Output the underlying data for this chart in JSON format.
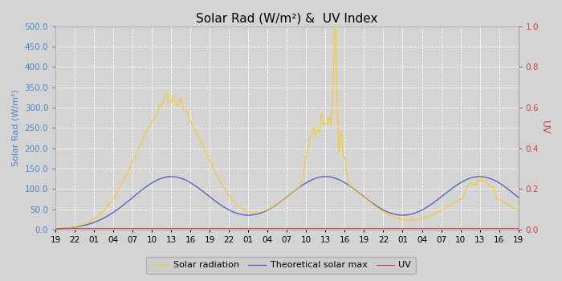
{
  "title": "Solar Rad (W/m²) &  UV Index",
  "ylabel_left": "Solar Rad (W/m²)",
  "ylabel_right": "UV",
  "ylim_left": [
    0,
    500
  ],
  "ylim_right": [
    0,
    1.0
  ],
  "yticks_left": [
    0.0,
    50.0,
    100.0,
    150.0,
    200.0,
    250.0,
    300.0,
    350.0,
    400.0,
    450.0,
    500.0
  ],
  "yticks_right": [
    0.0,
    0.2,
    0.4,
    0.6,
    0.8,
    1.0
  ],
  "xtick_labels": [
    "19",
    "22",
    "01",
    "04",
    "07",
    "10",
    "13",
    "16",
    "19",
    "22",
    "01",
    "04",
    "07",
    "10",
    "13",
    "16",
    "19",
    "22",
    "01",
    "04",
    "07",
    "10",
    "13",
    "16",
    "19"
  ],
  "bg_color": "#d4d4d4",
  "plot_bg_color": "#d4d4d4",
  "grid_color": "#ffffff",
  "solar_color": "#ffcc00",
  "theoretical_color": "#5566bb",
  "uv_color": "#cc4444",
  "left_axis_color": "#4488cc",
  "legend_labels": [
    "Solar radiation",
    "Theoretical solar max",
    "UV"
  ],
  "title_fontsize": 11,
  "axis_label_fontsize": 8,
  "tick_fontsize": 7.5,
  "legend_fontsize": 8
}
